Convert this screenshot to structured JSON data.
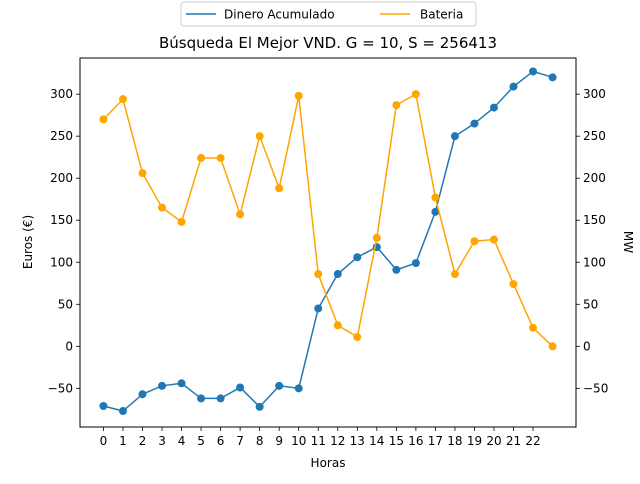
{
  "chart_data": {
    "type": "line",
    "title": "Búsqueda El Mejor VND. G = 10, S = 256413",
    "xlabel": "Horas",
    "ylabel_left": "Euros (€)",
    "ylabel_right": "MW",
    "legend_placement": "top-center",
    "grid": false,
    "x": [
      0,
      1,
      2,
      3,
      4,
      5,
      6,
      7,
      8,
      9,
      10,
      11,
      12,
      13,
      14,
      15,
      16,
      17,
      18,
      19,
      20,
      21,
      22,
      23
    ],
    "x_ticks": [
      "0",
      "1",
      "2",
      "3",
      "4",
      "5",
      "6",
      "7",
      "8",
      "9",
      "10",
      "11",
      "12",
      "13",
      "14",
      "15",
      "16",
      "17",
      "18",
      "19",
      "20",
      "21",
      "22"
    ],
    "xlim": [
      -1.2,
      24.2
    ],
    "left_axis": {
      "ylim": [
        -96,
        343
      ],
      "ticks": [
        -50,
        0,
        50,
        100,
        150,
        200,
        250,
        300
      ],
      "tick_labels": [
        "−50",
        "0",
        "50",
        "100",
        "150",
        "200",
        "250",
        "300"
      ]
    },
    "right_axis": {
      "ylim": [
        -96,
        343
      ],
      "ticks": [
        -50,
        0,
        50,
        100,
        150,
        200,
        250,
        300
      ],
      "tick_labels": [
        "−50",
        "0",
        "50",
        "100",
        "150",
        "200",
        "250",
        "300"
      ]
    },
    "series": [
      {
        "name": "Dinero Acumulado",
        "axis": "left",
        "color": "#1f77b4",
        "values": [
          -71,
          -77,
          -57,
          -47,
          -44,
          -62,
          -62,
          -49,
          -72,
          -47,
          -50,
          45,
          86,
          106,
          118,
          91,
          99,
          160,
          250,
          265,
          284,
          309,
          327,
          320
        ]
      },
      {
        "name": "Bateria",
        "axis": "right",
        "color": "#ffa500",
        "values": [
          270,
          294,
          206,
          165,
          148,
          224,
          224,
          157,
          250,
          188,
          298,
          86,
          25,
          11,
          129,
          287,
          300,
          177,
          86,
          125,
          127,
          74,
          22,
          0
        ]
      }
    ]
  }
}
